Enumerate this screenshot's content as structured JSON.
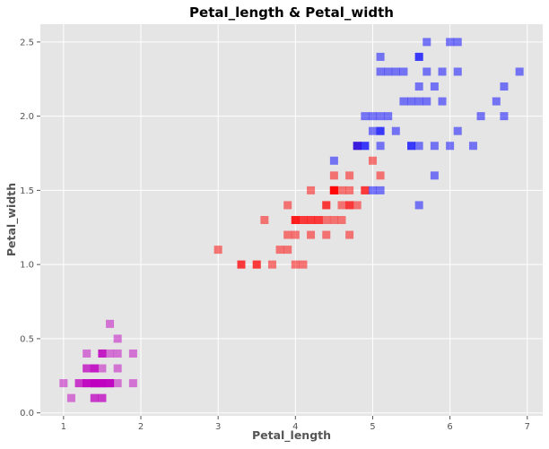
{
  "chart_data": {
    "type": "scatter",
    "title": "Petal_length & Petal_width",
    "xlabel": "Petal_length",
    "ylabel": "Petal_width",
    "xlim": [
      0.7,
      7.2
    ],
    "ylim": [
      -0.02,
      2.62
    ],
    "xticks": [
      1,
      2,
      3,
      4,
      5,
      6,
      7
    ],
    "yticks": [
      0.0,
      0.5,
      1.0,
      1.5,
      2.0,
      2.5
    ],
    "xtick_labels": [
      "1",
      "2",
      "3",
      "4",
      "5",
      "6",
      "7"
    ],
    "ytick_labels": [
      "0.0",
      "0.5",
      "1.0",
      "1.5",
      "2.0",
      "2.5"
    ],
    "grid": true,
    "marker": "square",
    "background": "#e5e5e5",
    "grid_color": "#ffffff",
    "series": [
      {
        "color": "#c000c0",
        "points": [
          [
            1.4,
            0.2
          ],
          [
            1.4,
            0.2
          ],
          [
            1.3,
            0.2
          ],
          [
            1.5,
            0.2
          ],
          [
            1.4,
            0.2
          ],
          [
            1.7,
            0.4
          ],
          [
            1.4,
            0.3
          ],
          [
            1.5,
            0.2
          ],
          [
            1.4,
            0.2
          ],
          [
            1.5,
            0.1
          ],
          [
            1.5,
            0.2
          ],
          [
            1.6,
            0.2
          ],
          [
            1.4,
            0.1
          ],
          [
            1.1,
            0.1
          ],
          [
            1.2,
            0.2
          ],
          [
            1.5,
            0.4
          ],
          [
            1.3,
            0.4
          ],
          [
            1.4,
            0.3
          ],
          [
            1.7,
            0.3
          ],
          [
            1.5,
            0.3
          ],
          [
            1.7,
            0.2
          ],
          [
            1.5,
            0.4
          ],
          [
            1.0,
            0.2
          ],
          [
            1.7,
            0.5
          ],
          [
            1.9,
            0.2
          ],
          [
            1.6,
            0.2
          ],
          [
            1.6,
            0.4
          ],
          [
            1.5,
            0.2
          ],
          [
            1.4,
            0.2
          ],
          [
            1.6,
            0.2
          ],
          [
            1.6,
            0.2
          ],
          [
            1.5,
            0.4
          ],
          [
            1.5,
            0.1
          ],
          [
            1.4,
            0.2
          ],
          [
            1.5,
            0.2
          ],
          [
            1.2,
            0.2
          ],
          [
            1.3,
            0.2
          ],
          [
            1.4,
            0.1
          ],
          [
            1.3,
            0.2
          ],
          [
            1.5,
            0.2
          ],
          [
            1.3,
            0.3
          ],
          [
            1.3,
            0.3
          ],
          [
            1.3,
            0.2
          ],
          [
            1.6,
            0.6
          ],
          [
            1.9,
            0.4
          ],
          [
            1.4,
            0.3
          ],
          [
            1.6,
            0.2
          ],
          [
            1.4,
            0.2
          ],
          [
            1.5,
            0.2
          ],
          [
            1.4,
            0.2
          ]
        ]
      },
      {
        "color": "#ff0000",
        "points": [
          [
            4.7,
            1.4
          ],
          [
            4.5,
            1.5
          ],
          [
            4.9,
            1.5
          ],
          [
            4.0,
            1.3
          ],
          [
            4.6,
            1.5
          ],
          [
            4.5,
            1.3
          ],
          [
            4.7,
            1.6
          ],
          [
            3.3,
            1.0
          ],
          [
            4.6,
            1.3
          ],
          [
            3.9,
            1.4
          ],
          [
            3.5,
            1.0
          ],
          [
            4.2,
            1.5
          ],
          [
            4.0,
            1.0
          ],
          [
            4.7,
            1.4
          ],
          [
            3.6,
            1.3
          ],
          [
            4.4,
            1.4
          ],
          [
            4.5,
            1.5
          ],
          [
            4.1,
            1.0
          ],
          [
            4.5,
            1.5
          ],
          [
            3.9,
            1.1
          ],
          [
            4.8,
            1.8
          ],
          [
            4.0,
            1.3
          ],
          [
            4.9,
            1.5
          ],
          [
            4.7,
            1.2
          ],
          [
            4.3,
            1.3
          ],
          [
            4.4,
            1.4
          ],
          [
            4.8,
            1.4
          ],
          [
            5.0,
            1.7
          ],
          [
            4.5,
            1.5
          ],
          [
            3.5,
            1.0
          ],
          [
            3.8,
            1.1
          ],
          [
            3.7,
            1.0
          ],
          [
            3.9,
            1.2
          ],
          [
            5.1,
            1.6
          ],
          [
            4.5,
            1.5
          ],
          [
            4.5,
            1.6
          ],
          [
            4.7,
            1.5
          ],
          [
            4.4,
            1.3
          ],
          [
            4.1,
            1.3
          ],
          [
            4.0,
            1.3
          ],
          [
            4.4,
            1.2
          ],
          [
            4.6,
            1.4
          ],
          [
            4.0,
            1.2
          ],
          [
            3.3,
            1.0
          ],
          [
            4.2,
            1.3
          ],
          [
            4.2,
            1.2
          ],
          [
            4.2,
            1.3
          ],
          [
            4.3,
            1.3
          ],
          [
            3.0,
            1.1
          ],
          [
            4.1,
            1.3
          ]
        ]
      },
      {
        "color": "#0000ff",
        "points": [
          [
            6.0,
            2.5
          ],
          [
            5.1,
            1.9
          ],
          [
            5.9,
            2.1
          ],
          [
            5.6,
            1.8
          ],
          [
            5.8,
            2.2
          ],
          [
            6.6,
            2.1
          ],
          [
            4.5,
            1.7
          ],
          [
            6.3,
            1.8
          ],
          [
            5.8,
            1.8
          ],
          [
            6.1,
            2.5
          ],
          [
            5.1,
            2.0
          ],
          [
            5.3,
            1.9
          ],
          [
            5.5,
            2.1
          ],
          [
            5.0,
            2.0
          ],
          [
            5.1,
            2.4
          ],
          [
            5.3,
            2.3
          ],
          [
            5.5,
            1.8
          ],
          [
            6.7,
            2.2
          ],
          [
            6.9,
            2.3
          ],
          [
            5.0,
            1.5
          ],
          [
            5.7,
            2.3
          ],
          [
            4.9,
            2.0
          ],
          [
            6.7,
            2.0
          ],
          [
            4.9,
            1.8
          ],
          [
            5.7,
            2.1
          ],
          [
            6.0,
            1.8
          ],
          [
            4.8,
            1.8
          ],
          [
            4.9,
            1.8
          ],
          [
            5.6,
            2.1
          ],
          [
            5.8,
            1.6
          ],
          [
            6.1,
            1.9
          ],
          [
            6.4,
            2.0
          ],
          [
            5.6,
            2.2
          ],
          [
            5.1,
            1.5
          ],
          [
            5.6,
            1.4
          ],
          [
            6.1,
            2.3
          ],
          [
            5.6,
            2.4
          ],
          [
            5.5,
            1.8
          ],
          [
            4.8,
            1.8
          ],
          [
            5.4,
            2.1
          ],
          [
            5.6,
            2.4
          ],
          [
            5.1,
            2.3
          ],
          [
            5.1,
            1.9
          ],
          [
            5.9,
            2.3
          ],
          [
            5.7,
            2.5
          ],
          [
            5.2,
            2.3
          ],
          [
            5.0,
            1.9
          ],
          [
            5.2,
            2.0
          ],
          [
            5.4,
            2.3
          ],
          [
            5.1,
            1.8
          ]
        ]
      }
    ]
  }
}
